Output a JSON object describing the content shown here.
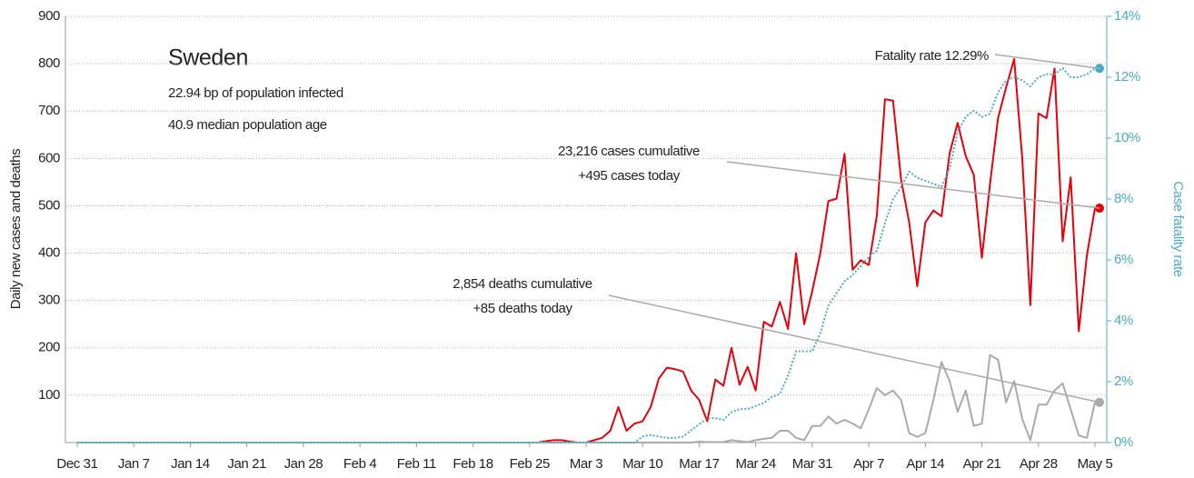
{
  "chart_data": {
    "type": "line",
    "title": "Sweden",
    "annotations": [
      "22.94 bp of population infected",
      "40.9 median population age",
      "Fatality rate 12.29%",
      "23,216 cases cumulative",
      "+495 cases today",
      "2,854 deaths cumulative",
      "+85 deaths today"
    ],
    "y_label": "Daily new cases and deaths",
    "y2_label": "Case fatality rate",
    "categories": [
      "Dec 31",
      null,
      null,
      null,
      null,
      null,
      null,
      "Jan 7",
      null,
      null,
      null,
      null,
      null,
      null,
      "Jan 14",
      null,
      null,
      null,
      null,
      null,
      null,
      "Jan 21",
      null,
      null,
      null,
      null,
      null,
      null,
      "Jan 28",
      null,
      null,
      null,
      null,
      null,
      null,
      "Feb 4",
      null,
      null,
      null,
      null,
      null,
      null,
      "Feb 11",
      null,
      null,
      null,
      null,
      null,
      null,
      "Feb 18",
      null,
      null,
      null,
      null,
      null,
      null,
      "Feb 25",
      null,
      null,
      null,
      null,
      null,
      null,
      "Mar 3",
      null,
      null,
      null,
      null,
      null,
      null,
      "Mar 10",
      null,
      null,
      null,
      null,
      null,
      null,
      "Mar 17",
      null,
      null,
      null,
      null,
      null,
      null,
      "Mar 24",
      null,
      null,
      null,
      null,
      null,
      null,
      "Mar 31",
      null,
      null,
      null,
      null,
      null,
      null,
      "Apr 7",
      null,
      null,
      null,
      null,
      null,
      null,
      "Apr 14",
      null,
      null,
      null,
      null,
      null,
      null,
      "Apr 21",
      null,
      null,
      null,
      null,
      null,
      null,
      "Apr 28",
      null,
      null,
      null,
      null,
      null,
      null,
      "May 5"
    ],
    "series": [
      {
        "color": "#e8000b",
        "style": "solid",
        "axis": "y",
        "values": [
          0,
          0,
          0,
          0,
          0,
          0,
          0,
          0,
          0,
          0,
          0,
          0,
          0,
          0,
          0,
          0,
          0,
          0,
          0,
          0,
          0,
          0,
          0,
          0,
          0,
          0,
          0,
          0,
          0,
          0,
          0,
          0,
          0,
          0,
          0,
          0,
          0,
          0,
          0,
          0,
          0,
          0,
          0,
          0,
          0,
          0,
          0,
          0,
          0,
          0,
          0,
          0,
          0,
          0,
          0,
          0,
          0,
          0,
          3,
          5,
          5,
          2,
          0,
          0,
          5,
          10,
          25,
          75,
          25,
          40,
          45,
          75,
          135,
          158,
          155,
          150,
          110,
          90,
          45,
          133,
          120,
          200,
          122,
          160,
          110,
          255,
          245,
          297,
          240,
          400,
          250,
          320,
          400,
          510,
          515,
          610,
          365,
          385,
          375,
          480,
          725,
          722,
          555,
          465,
          330,
          465,
          490,
          478,
          610,
          675,
          605,
          565,
          390,
          545,
          685,
          750,
          810,
          600,
          290,
          695,
          685,
          790,
          425,
          560,
          235,
          395,
          495
        ]
      },
      {
        "color": "#aaaaaa",
        "style": "solid",
        "axis": "y",
        "values": [
          0,
          0,
          0,
          0,
          0,
          0,
          0,
          0,
          0,
          0,
          0,
          0,
          0,
          0,
          0,
          0,
          0,
          0,
          0,
          0,
          0,
          0,
          0,
          0,
          0,
          0,
          0,
          0,
          0,
          0,
          0,
          0,
          0,
          0,
          0,
          0,
          0,
          0,
          0,
          0,
          0,
          0,
          0,
          0,
          0,
          0,
          0,
          0,
          0,
          0,
          0,
          0,
          0,
          0,
          0,
          0,
          0,
          0,
          0,
          0,
          0,
          0,
          0,
          0,
          0,
          0,
          0,
          0,
          0,
          0,
          0,
          0,
          0,
          0,
          0,
          0,
          0,
          2,
          1,
          1,
          1,
          5,
          3,
          1,
          5,
          8,
          10,
          25,
          25,
          10,
          5,
          35,
          35,
          55,
          40,
          48,
          40,
          30,
          70,
          115,
          100,
          110,
          90,
          20,
          12,
          20,
          90,
          170,
          130,
          65,
          110,
          35,
          40,
          185,
          175,
          85,
          130,
          50,
          5,
          80,
          80,
          110,
          125,
          70,
          15,
          10,
          85
        ]
      },
      {
        "color": "#4bacc6",
        "style": "dotted",
        "axis": "y2",
        "values": [
          0,
          0,
          0,
          0,
          0,
          0,
          0,
          0,
          0,
          0,
          0,
          0,
          0,
          0,
          0,
          0,
          0,
          0,
          0,
          0,
          0,
          0,
          0,
          0,
          0,
          0,
          0,
          0,
          0,
          0,
          0,
          0,
          0,
          0,
          0,
          0,
          0,
          0,
          0,
          0,
          0,
          0,
          0,
          0,
          0,
          0,
          0,
          0,
          0,
          0,
          0,
          0,
          0,
          0,
          0,
          0,
          0,
          0,
          0,
          0,
          0,
          0,
          0,
          0,
          0,
          0,
          0,
          0,
          0,
          0,
          0.2,
          0.25,
          0.2,
          0.15,
          0.15,
          0.2,
          0.4,
          0.6,
          0.8,
          0.8,
          0.75,
          1.0,
          1.1,
          1.1,
          1.2,
          1.3,
          1.5,
          1.6,
          2.2,
          3.0,
          3.0,
          3.0,
          3.6,
          4.5,
          4.9,
          5.3,
          5.5,
          5.8,
          6.1,
          6.3,
          7.2,
          8.0,
          8.4,
          8.9,
          8.7,
          8.6,
          8.5,
          8.4,
          9.0,
          10.2,
          10.7,
          10.9,
          10.7,
          10.8,
          11.5,
          11.9,
          12.0,
          11.9,
          11.7,
          12.0,
          12.1,
          12.1,
          12.3,
          12.0,
          12.0,
          12.1,
          12.29
        ]
      }
    ],
    "ylim": [
      0,
      900
    ],
    "yticks": [
      100,
      200,
      300,
      400,
      500,
      600,
      700,
      800,
      900
    ],
    "y2lim": [
      0,
      14
    ],
    "y2ticks": [
      {
        "value": 0,
        "label": "0%"
      },
      {
        "value": 2,
        "label": "2%"
      },
      {
        "value": 4,
        "label": "4%"
      },
      {
        "value": 6,
        "label": "6%"
      },
      {
        "value": 8,
        "label": "8%"
      },
      {
        "value": 10,
        "label": "10%"
      },
      {
        "value": 12,
        "label": "12%"
      },
      {
        "value": 14,
        "label": "14%"
      }
    ],
    "grid": true
  }
}
